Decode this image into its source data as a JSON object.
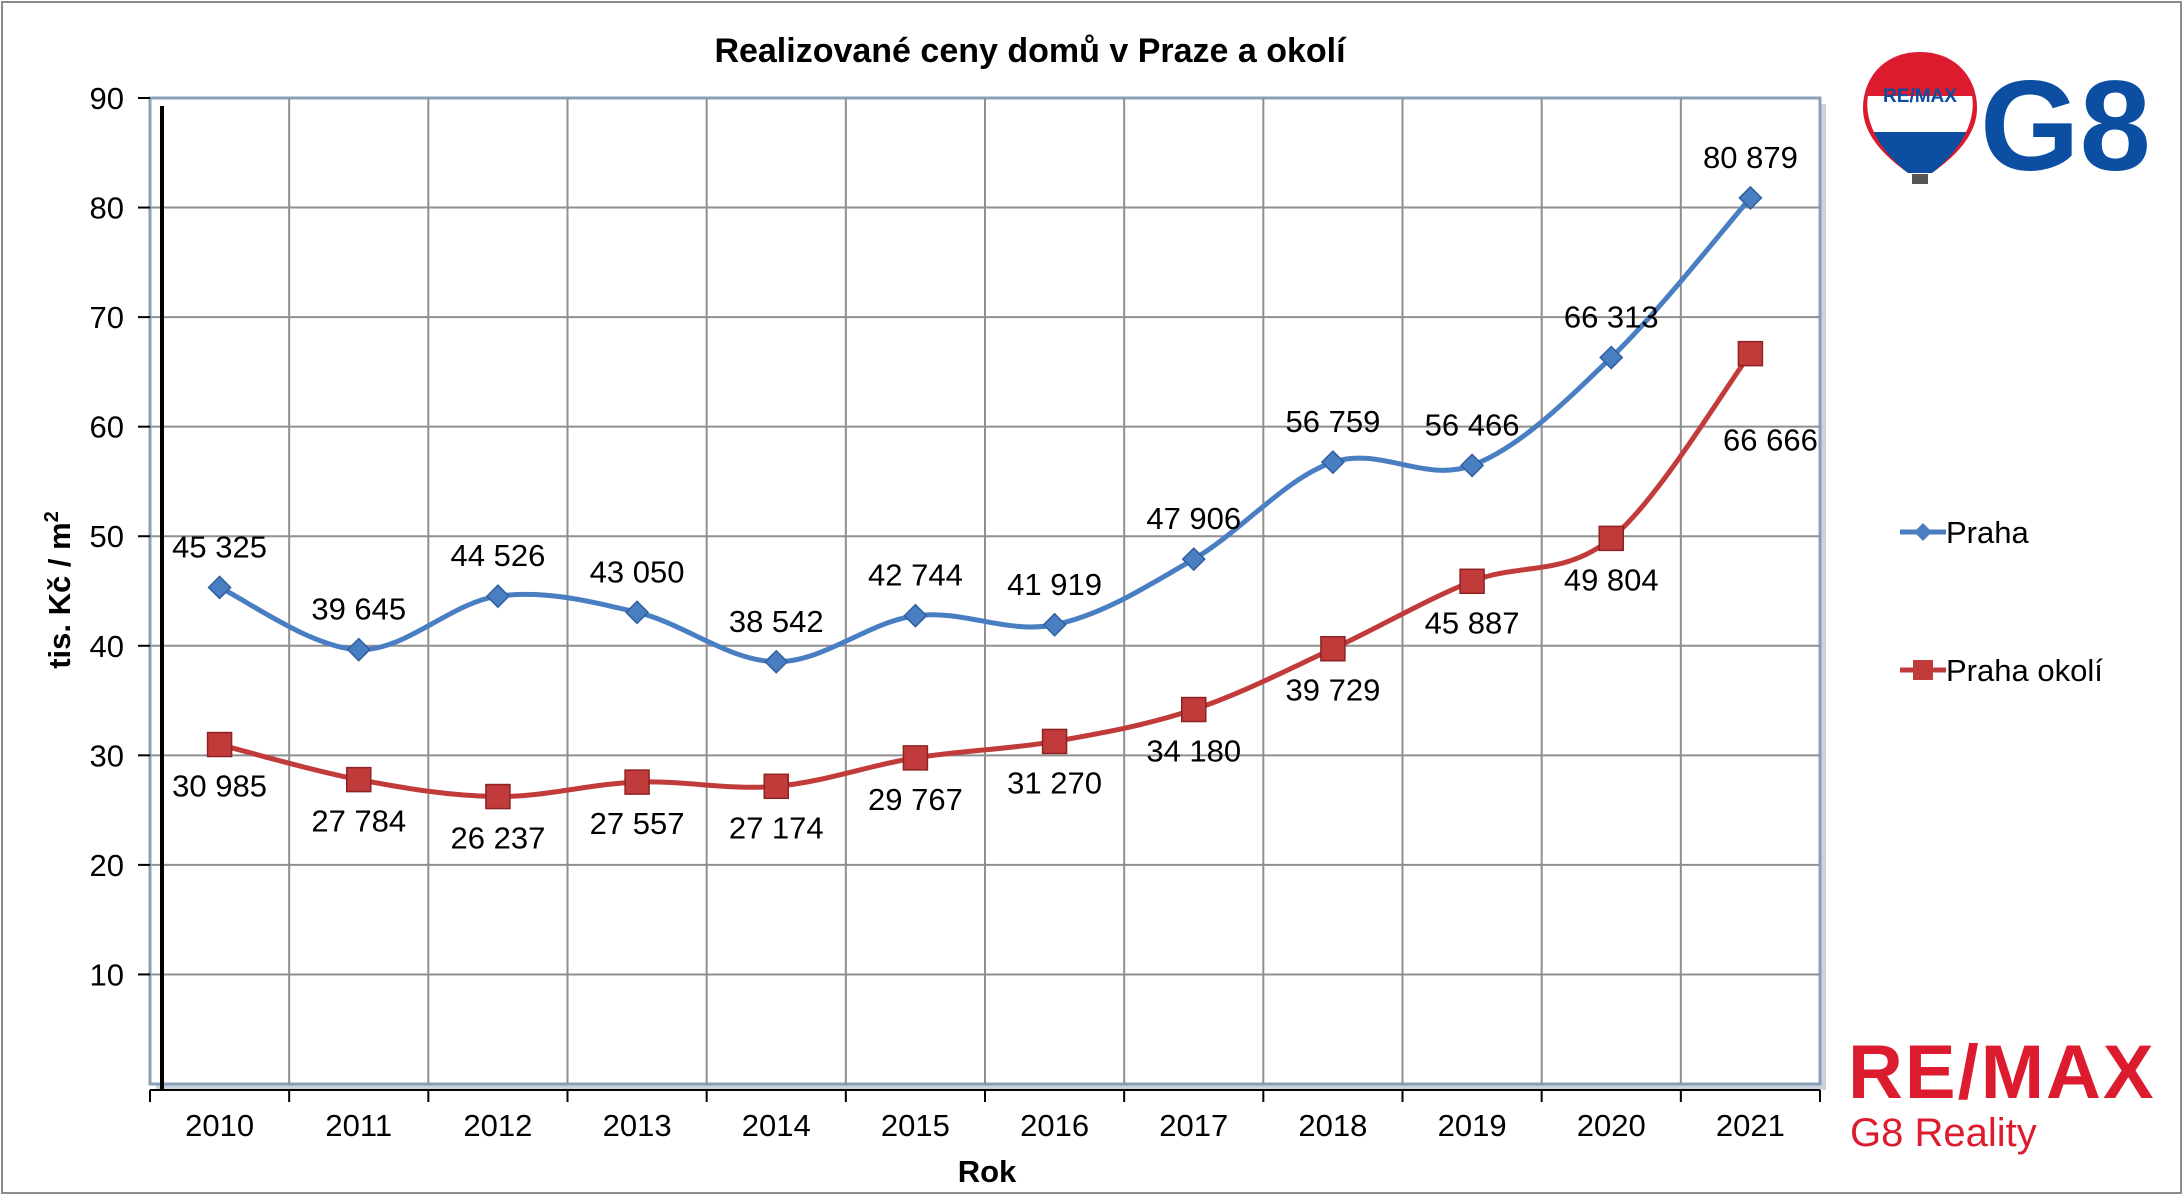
{
  "chart_data": {
    "type": "line",
    "title": "Realizované ceny domů v Praze a okolí",
    "xlabel": "Rok",
    "ylabel_main": "tis. Kč / m",
    "ylabel_sup": "2",
    "categories": [
      "2010",
      "2011",
      "2012",
      "2013",
      "2014",
      "2015",
      "2016",
      "2017",
      "2018",
      "2019",
      "2020",
      "2021"
    ],
    "ylim": [
      0,
      90
    ],
    "yticks": [
      {
        "value": 10,
        "label": "10"
      },
      {
        "value": 20,
        "label": "20"
      },
      {
        "value": 30,
        "label": "30"
      },
      {
        "value": 40,
        "label": "40"
      },
      {
        "value": 50,
        "label": "50"
      },
      {
        "value": 60,
        "label": "60"
      },
      {
        "value": 70,
        "label": "70"
      },
      {
        "value": 80,
        "label": "80"
      },
      {
        "value": 90,
        "label": "90"
      }
    ],
    "grid": true,
    "smoothed": true,
    "legend_position": "right",
    "series": [
      {
        "name": "Praha",
        "color": "#4a7ec2",
        "marker": "diamond",
        "values": [
          45.325,
          39.645,
          44.526,
          43.05,
          38.542,
          42.744,
          41.919,
          47.906,
          56.759,
          56.466,
          66.313,
          80.879
        ],
        "labels": [
          "45 325",
          "39 645",
          "44 526",
          "43 050",
          "38 542",
          "42 744",
          "41 919",
          "47 906",
          "56 759",
          "56 466",
          "66 313",
          "80 879"
        ],
        "label_side": [
          "above",
          "above",
          "above",
          "above",
          "above",
          "above",
          "above",
          "above",
          "above",
          "above",
          "above",
          "above"
        ]
      },
      {
        "name": "Praha okolí",
        "color": "#c23b3b",
        "marker": "square",
        "values": [
          30.985,
          27.784,
          26.237,
          27.557,
          27.174,
          29.767,
          31.27,
          34.18,
          39.729,
          45.887,
          49.804,
          66.666
        ],
        "labels": [
          "30 985",
          "27 784",
          "26 237",
          "27 557",
          "27 174",
          "29 767",
          "31 270",
          "34 180",
          "39 729",
          "45 887",
          "49 804",
          "66 666"
        ],
        "label_side": [
          "below",
          "below",
          "below",
          "below",
          "below",
          "below",
          "below",
          "below",
          "below",
          "below",
          "below",
          "below-right"
        ]
      }
    ]
  },
  "branding": {
    "balloon_text": "RE/MAX",
    "logo_text": "G8",
    "bottom_brand": "RE/MAX",
    "bottom_sub": "G8 Reality",
    "brand_red": "#dc1c2e",
    "brand_blue": "#0b4ea2"
  }
}
